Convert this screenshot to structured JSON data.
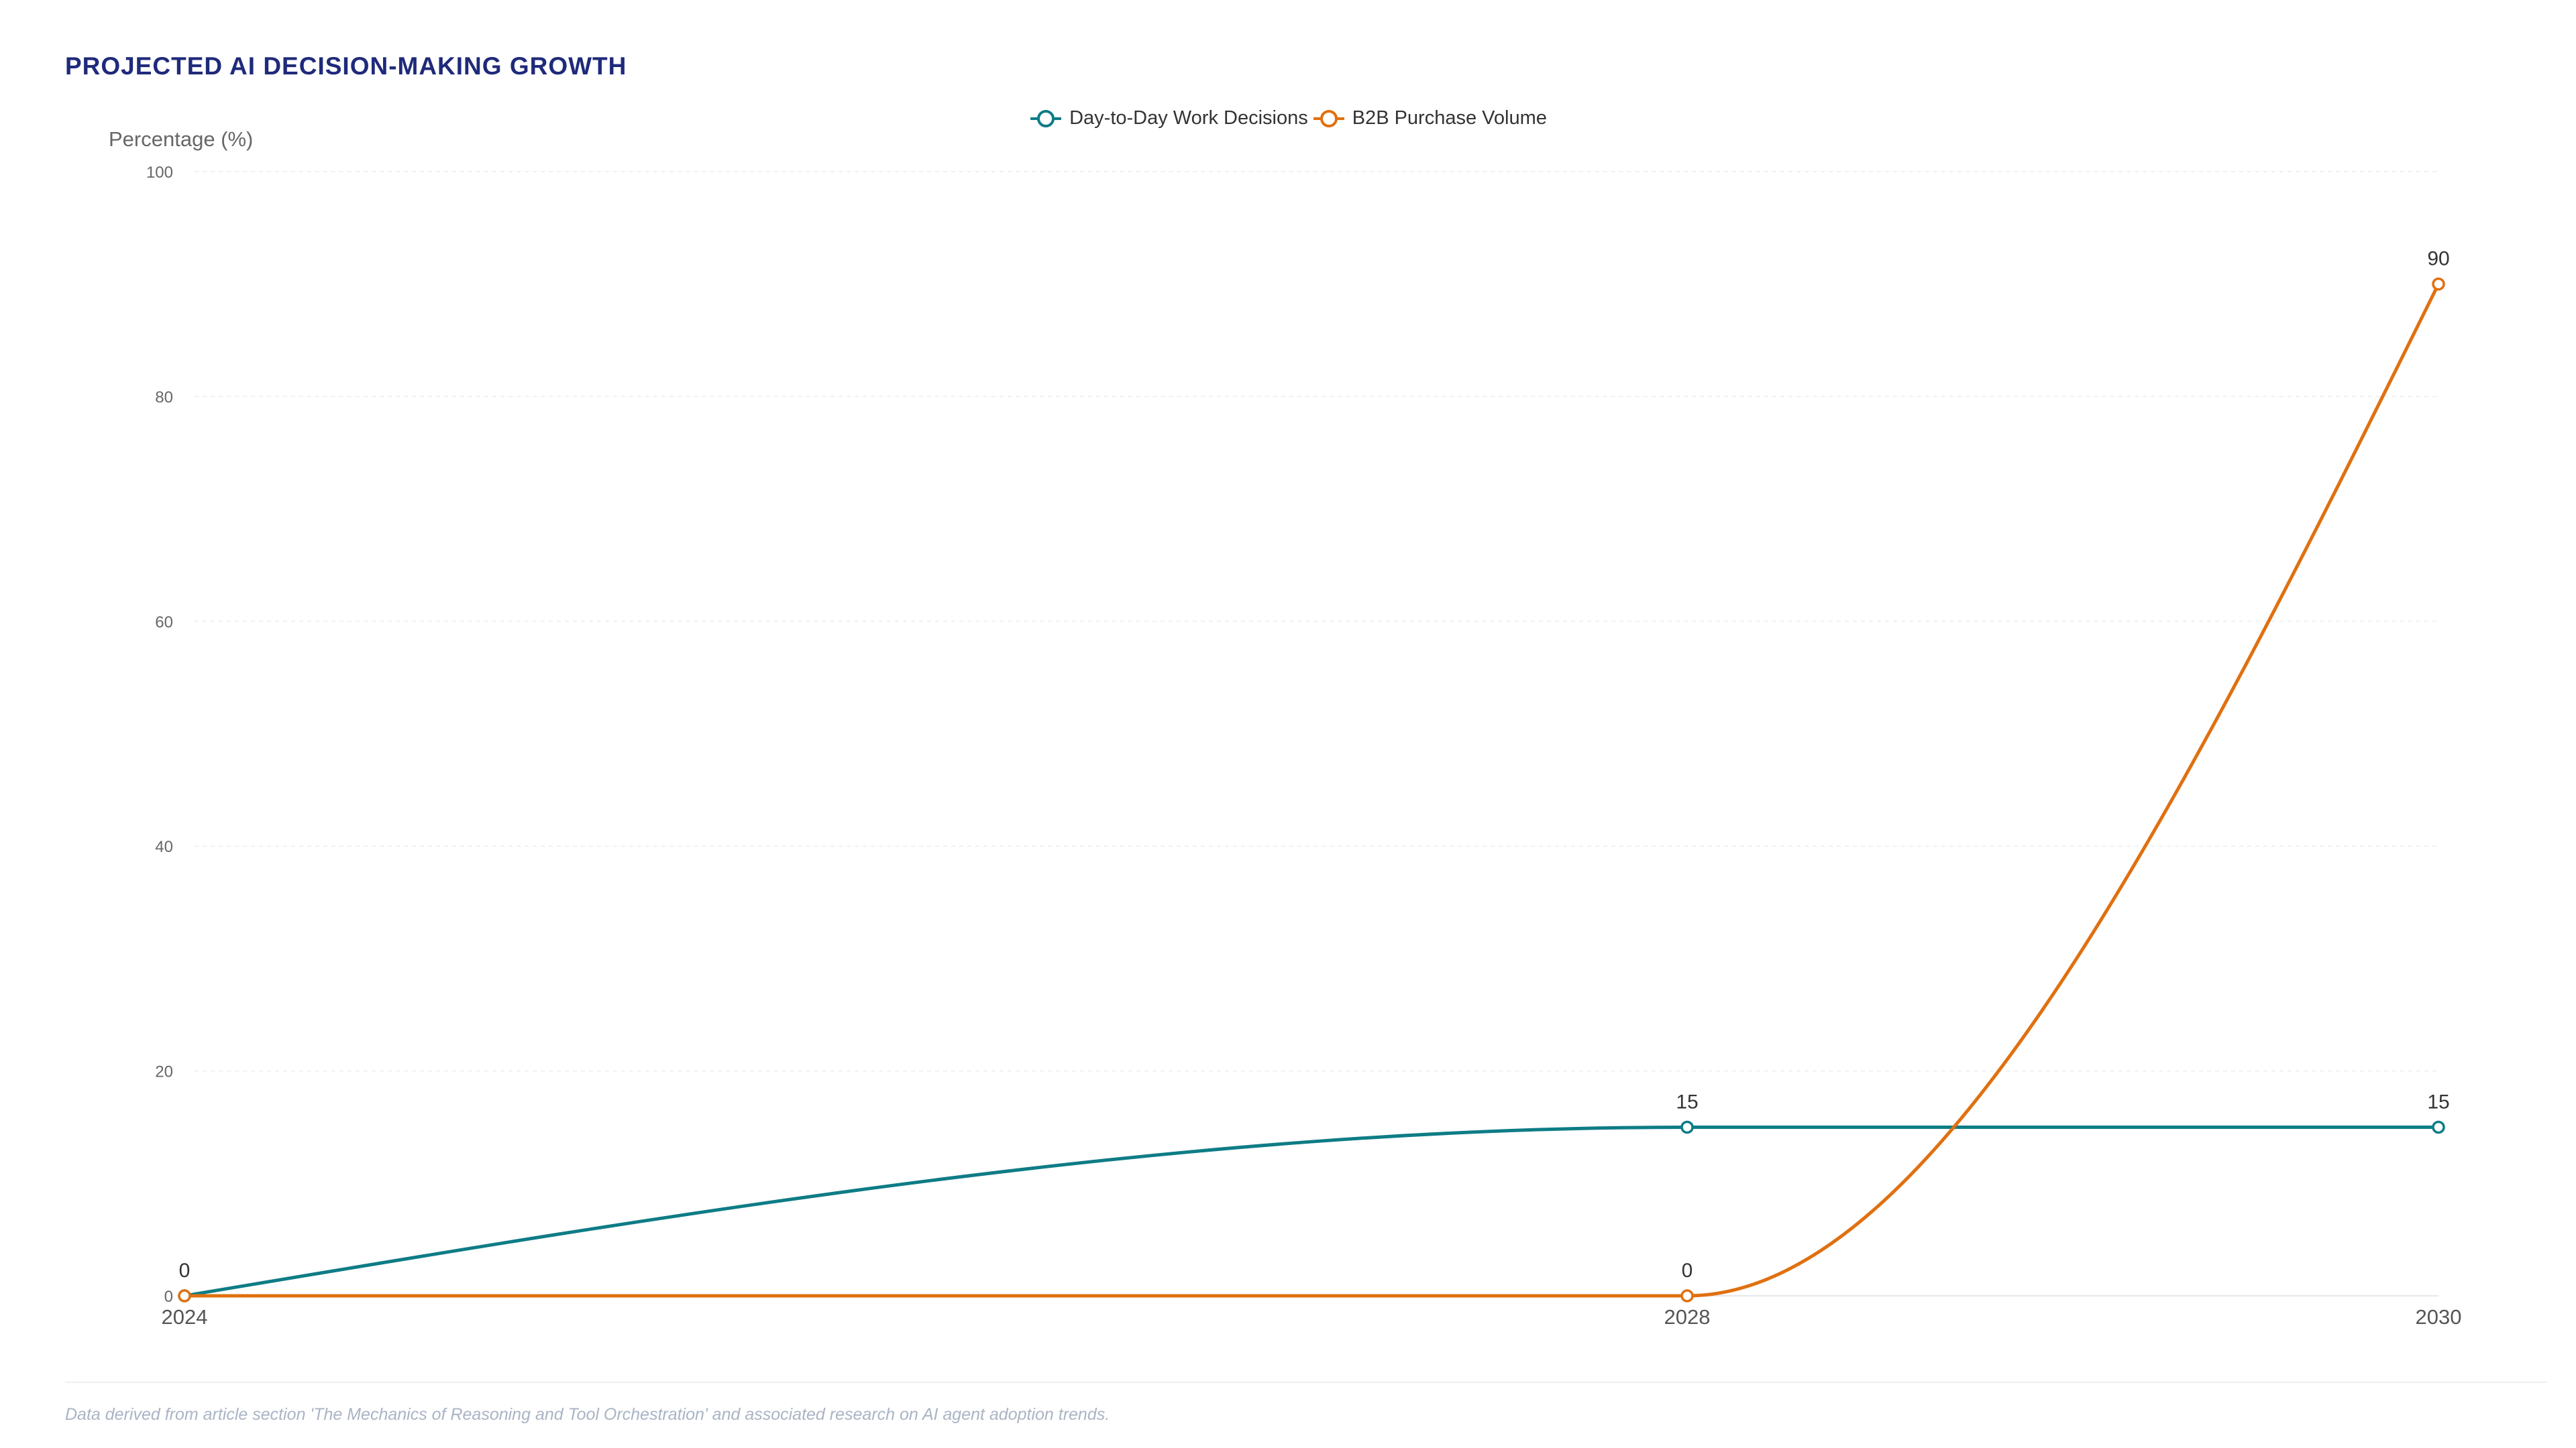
{
  "chart_data": {
    "type": "line",
    "title": "PROJECTED AI DECISION-MAKING GROWTH",
    "ylabel": "Percentage (%)",
    "xlabel": "",
    "x": [
      "2024",
      "2028",
      "2030"
    ],
    "ylim": [
      0,
      100
    ],
    "yticks": [
      0,
      20,
      40,
      60,
      80,
      100
    ],
    "grid": true,
    "legend_position": "top-center",
    "series": [
      {
        "name": "Day-to-Day Work Decisions",
        "values": [
          0,
          15,
          15
        ],
        "color": "#0e7c86"
      },
      {
        "name": "B2B Purchase Volume",
        "values": [
          0,
          0,
          90
        ],
        "color": "#e07010"
      }
    ],
    "footnote": "Data derived from article section 'The Mechanics of Reasoning and Tool Orchestration' and associated research on AI agent adoption trends."
  }
}
